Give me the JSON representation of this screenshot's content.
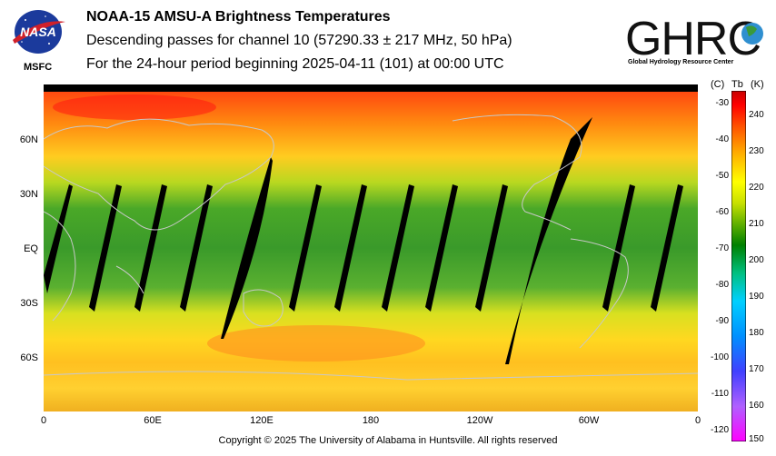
{
  "header": {
    "line1": "NOAA-15 AMSU-A Brightness Temperatures",
    "line2": "Descending passes for channel 10 (57290.33 ± 217 MHz, 50 hPa)",
    "line3": "For the 24-hour period beginning 2025-04-11 (101) at 00:00 UTC"
  },
  "logos": {
    "nasa_text": "NASA",
    "msfc": "MSFC",
    "ghrc_text": "GHRC",
    "ghrc_sub": "Global Hydrology Resource Center"
  },
  "map": {
    "lat_labels": [
      {
        "text": "60N",
        "lat": 60
      },
      {
        "text": "30N",
        "lat": 30
      },
      {
        "text": "EQ",
        "lat": 0
      },
      {
        "text": "30S",
        "lat": -30
      },
      {
        "text": "60S",
        "lat": -60
      }
    ],
    "lon_labels": [
      {
        "text": "0",
        "lon": 0
      },
      {
        "text": "60E",
        "lon": 60
      },
      {
        "text": "120E",
        "lon": 120
      },
      {
        "text": "180",
        "lon": 180
      },
      {
        "text": "120W",
        "lon": 240
      },
      {
        "text": "60W",
        "lon": 300
      },
      {
        "text": "0",
        "lon": 360
      }
    ]
  },
  "colorbar": {
    "unit_c": "(C)",
    "label_tb": "Tb",
    "unit_k": "(K)",
    "range_k": [
      150,
      245
    ],
    "ticks_c": [
      "-30",
      "-40",
      "-50",
      "-60",
      "-70",
      "-80",
      "-90",
      "-100",
      "-110",
      "-120"
    ],
    "ticks_k": [
      "240",
      "230",
      "220",
      "210",
      "200",
      "190",
      "180",
      "170",
      "160",
      "150"
    ],
    "colors": [
      "#ff00ff",
      "#b060ff",
      "#4040ff",
      "#0090ff",
      "#00d0ff",
      "#00c080",
      "#008000",
      "#60b000",
      "#c8e000",
      "#ffff00",
      "#ffb000",
      "#ff5000",
      "#ff0000",
      "#c80000"
    ]
  },
  "footer": {
    "copyright": "Copyright © 2025 The University of Alabama in Huntsville.  All rights reserved"
  }
}
